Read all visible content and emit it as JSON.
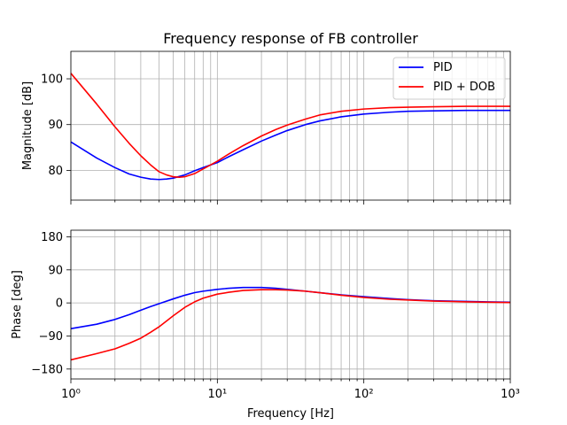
{
  "chart_data": [
    {
      "type": "line",
      "title": "Frequency response of FB controller",
      "xlabel": "",
      "ylabel": "Magnitude [dB]",
      "xscale": "log",
      "xlim": [
        1,
        1000
      ],
      "ylim": [
        73.5,
        106
      ],
      "yticks": [
        80,
        90,
        100
      ],
      "ytick_labels": [
        "80",
        "90",
        "100"
      ],
      "grid": true,
      "legend": "top-right",
      "series": [
        {
          "name": "PID",
          "color": "#0000ff",
          "x": [
            1,
            1.5,
            2,
            2.5,
            3,
            3.5,
            4,
            4.5,
            5,
            6,
            7,
            8,
            10,
            12,
            15,
            20,
            25,
            30,
            40,
            50,
            70,
            100,
            150,
            200,
            300,
            500,
            700,
            1000
          ],
          "y": [
            86.2,
            82.7,
            80.6,
            79.2,
            78.5,
            78.1,
            78.0,
            78.1,
            78.3,
            79.0,
            79.9,
            80.6,
            81.7,
            83.0,
            84.5,
            86.4,
            87.7,
            88.7,
            90.0,
            90.8,
            91.7,
            92.3,
            92.7,
            92.9,
            93.0,
            93.1,
            93.1,
            93.1
          ]
        },
        {
          "name": "PID + DOB",
          "color": "#ff0000",
          "x": [
            1,
            1.5,
            2,
            2.5,
            3,
            3.5,
            4,
            4.5,
            5,
            5.5,
            6,
            7,
            8,
            10,
            12,
            15,
            20,
            25,
            30,
            40,
            50,
            70,
            100,
            150,
            200,
            300,
            500,
            700,
            1000
          ],
          "y": [
            101.2,
            94.5,
            89.5,
            85.9,
            83.2,
            81.2,
            79.7,
            79.0,
            78.6,
            78.5,
            78.6,
            79.3,
            80.3,
            82.0,
            83.6,
            85.4,
            87.5,
            88.9,
            89.9,
            91.2,
            92.1,
            92.9,
            93.4,
            93.7,
            93.8,
            93.9,
            94.0,
            94.0,
            94.0
          ]
        }
      ]
    },
    {
      "type": "line",
      "title": "",
      "xlabel": "Frequency [Hz]",
      "ylabel": "Phase [deg]",
      "xscale": "log",
      "xlim": [
        1,
        1000
      ],
      "ylim": [
        -207,
        198
      ],
      "xticks": [
        1,
        10,
        100,
        1000
      ],
      "xtick_labels": [
        "10⁰",
        "10¹",
        "10²",
        "10³"
      ],
      "yticks": [
        -180,
        -90,
        0,
        90,
        180
      ],
      "ytick_labels": [
        "−180",
        "−90",
        "0",
        "90",
        "180"
      ],
      "grid": true,
      "series": [
        {
          "name": "PID",
          "color": "#0000ff",
          "x": [
            1,
            1.5,
            2,
            2.5,
            3,
            3.5,
            4,
            5,
            6,
            7,
            8,
            10,
            12,
            15,
            20,
            25,
            30,
            40,
            50,
            70,
            100,
            150,
            200,
            300,
            500,
            700,
            1000
          ],
          "y": [
            -70,
            -58,
            -45,
            -32,
            -20,
            -10,
            -2,
            11,
            21,
            28,
            32,
            37,
            40,
            42,
            42,
            40,
            37,
            32,
            28,
            22,
            17,
            12,
            9,
            6,
            4,
            3,
            2
          ]
        },
        {
          "name": "PID + DOB",
          "color": "#ff0000",
          "x": [
            1,
            1.5,
            2,
            2.5,
            3,
            3.5,
            4,
            5,
            6,
            7,
            8,
            10,
            12,
            15,
            20,
            25,
            30,
            40,
            50,
            70,
            100,
            150,
            200,
            300,
            500,
            700,
            1000
          ],
          "y": [
            -155,
            -138,
            -125,
            -110,
            -96,
            -80,
            -65,
            -35,
            -12,
            3,
            13,
            24,
            29,
            34,
            36,
            36,
            35,
            32,
            28,
            21,
            15,
            10,
            8,
            5,
            3,
            2,
            1
          ]
        }
      ]
    }
  ]
}
